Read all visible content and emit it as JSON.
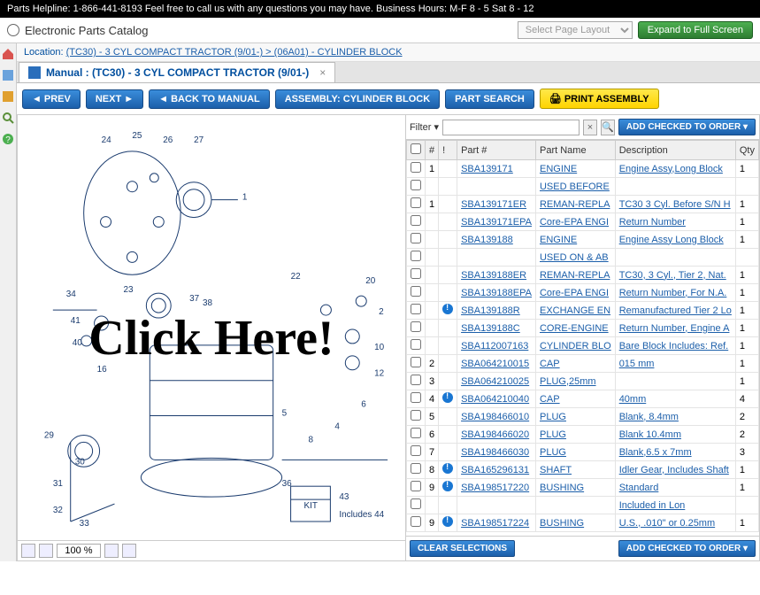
{
  "helpline": "Parts Helpline: 1-866-441-8193 Feel free to call us with any questions you may have. Business Hours: M-F 8 - 5 Sat 8 - 12",
  "catalog_title": "Electronic Parts Catalog",
  "select_layout_placeholder": "Select Page Layout",
  "expand_btn": "Expand to Full Screen",
  "location_label": "Location: ",
  "location_path": "(TC30) - 3 CYL COMPACT TRACTOR (9/01-) > (06A01) - CYLINDER BLOCK",
  "manual_tab": "Manual : (TC30) - 3 CYL COMPACT TRACTOR (9/01-)",
  "toolbar": {
    "prev": "PREV",
    "next": "NEXT",
    "back": "BACK TO MANUAL",
    "assembly": "ASSEMBLY: CYLINDER BLOCK",
    "search": "PART SEARCH",
    "print": "PRINT ASSEMBLY"
  },
  "overlay": "Click Here!",
  "zoom_value": "100 %",
  "filter_label": "Filter ▾",
  "add_checked": "ADD CHECKED TO ORDER ▾",
  "clear_sel": "CLEAR SELECTIONS",
  "columns": {
    "chk": "",
    "num": "#",
    "info": "!",
    "part": "Part #",
    "name": "Part Name",
    "desc": "Description",
    "qty": "Qty"
  },
  "rows": [
    {
      "num": "1",
      "info": false,
      "part": "SBA139171",
      "name": "ENGINE",
      "desc": "Engine Assy,Long Block",
      "qty": "1"
    },
    {
      "num": "",
      "info": false,
      "part": "",
      "name": "USED BEFORE",
      "desc": "",
      "qty": ""
    },
    {
      "num": "1",
      "info": false,
      "part": "SBA139171ER",
      "name": "REMAN-REPLA",
      "desc": "TC30 3 Cyl. Before S/N H",
      "qty": "1"
    },
    {
      "num": "",
      "info": false,
      "part": "SBA139171EPA",
      "name": "Core-EPA ENGI",
      "desc": "Return Number",
      "qty": "1"
    },
    {
      "num": "",
      "info": false,
      "part": "SBA139188",
      "name": "ENGINE",
      "desc": "Engine Assy Long Block",
      "qty": "1"
    },
    {
      "num": "",
      "info": false,
      "part": "",
      "name": "USED ON & AB",
      "desc": "",
      "qty": ""
    },
    {
      "num": "",
      "info": false,
      "part": "SBA139188ER",
      "name": "REMAN-REPLA",
      "desc": "TC30, 3 Cyl., Tier 2, Nat.",
      "qty": "1"
    },
    {
      "num": "",
      "info": false,
      "part": "SBA139188EPA",
      "name": "Core-EPA ENGI",
      "desc": "Return Number, For N.A.",
      "qty": "1"
    },
    {
      "num": "",
      "info": true,
      "part": "SBA139188R",
      "name": "EXCHANGE EN",
      "desc": "Remanufactured Tier 2 Lo",
      "qty": "1"
    },
    {
      "num": "",
      "info": false,
      "part": "SBA139188C",
      "name": "CORE-ENGINE",
      "desc": "Return Number, Engine A",
      "qty": "1"
    },
    {
      "num": "",
      "info": false,
      "part": "SBA112007163",
      "name": "CYLINDER BLO",
      "desc": "Bare Block Includes: Ref.",
      "qty": "1"
    },
    {
      "num": "2",
      "info": false,
      "part": "SBA064210015",
      "name": "CAP",
      "desc": "015 mm",
      "qty": "1"
    },
    {
      "num": "3",
      "info": false,
      "part": "SBA064210025",
      "name": "PLUG,25mm",
      "desc": "",
      "qty": "1"
    },
    {
      "num": "4",
      "info": true,
      "part": "SBA064210040",
      "name": "CAP",
      "desc": "40mm",
      "qty": "4"
    },
    {
      "num": "5",
      "info": false,
      "part": "SBA198466010",
      "name": "PLUG",
      "desc": "Blank, 8.4mm",
      "qty": "2"
    },
    {
      "num": "6",
      "info": false,
      "part": "SBA198466020",
      "name": "PLUG",
      "desc": "Blank 10.4mm",
      "qty": "2"
    },
    {
      "num": "7",
      "info": false,
      "part": "SBA198466030",
      "name": "PLUG",
      "desc": "Blank,6.5 x 7mm",
      "qty": "3"
    },
    {
      "num": "8",
      "info": true,
      "part": "SBA165296131",
      "name": "SHAFT",
      "desc": "Idler Gear, Includes Shaft",
      "qty": "1"
    },
    {
      "num": "9",
      "info": true,
      "part": "SBA198517220",
      "name": "BUSHING",
      "desc": "Standard",
      "qty": "1"
    },
    {
      "num": "",
      "info": false,
      "part": "",
      "name": "",
      "desc": "Included in Lon",
      "qty": ""
    },
    {
      "num": "9",
      "info": true,
      "part": "SBA198517224",
      "name": "BUSHING",
      "desc": "U.S., .010\" or 0.25mm",
      "qty": "1"
    }
  ],
  "diagram_callouts": [
    "24",
    "25",
    "26",
    "27",
    "1",
    "34",
    "37",
    "23",
    "38",
    "41",
    "40",
    "22",
    "20",
    "2",
    "16",
    "10",
    "12",
    "29",
    "6",
    "5",
    "30",
    "31",
    "8",
    "32",
    "33",
    "4",
    "36",
    "43",
    "Includes 44",
    "KIT"
  ]
}
